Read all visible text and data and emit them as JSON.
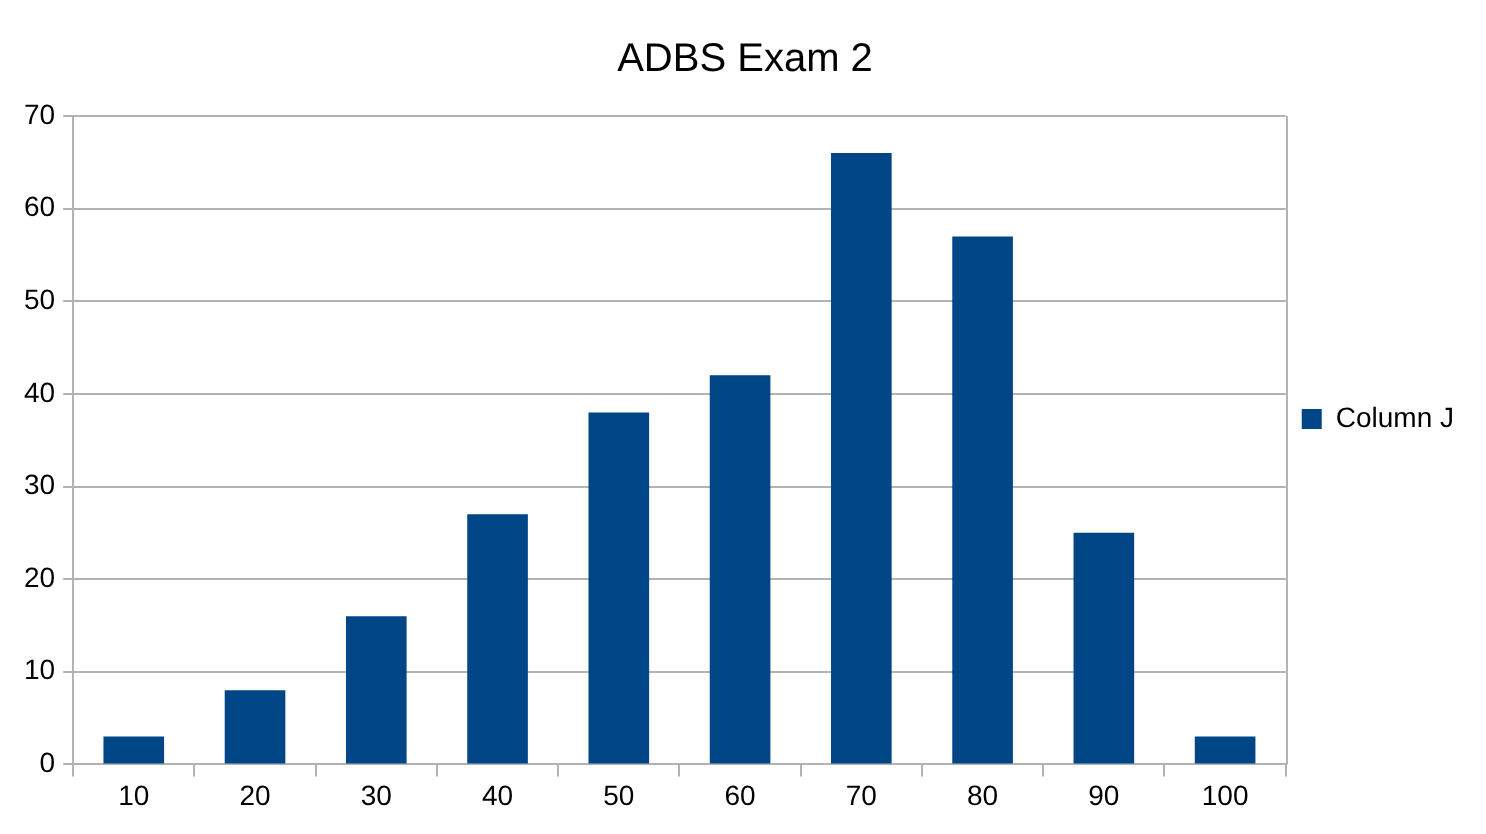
{
  "chart_data": {
    "type": "bar",
    "title": "ADBS Exam 2",
    "categories": [
      "10",
      "20",
      "30",
      "40",
      "50",
      "60",
      "70",
      "80",
      "90",
      "100"
    ],
    "series": [
      {
        "name": "Column J",
        "color": "#004586",
        "values": [
          3,
          8,
          16,
          27,
          38,
          42,
          66,
          57,
          25,
          3
        ]
      }
    ],
    "ylim": [
      0,
      70
    ],
    "yticks": [
      0,
      10,
      20,
      30,
      40,
      50,
      60,
      70
    ],
    "grid": "y",
    "legend": "right"
  }
}
